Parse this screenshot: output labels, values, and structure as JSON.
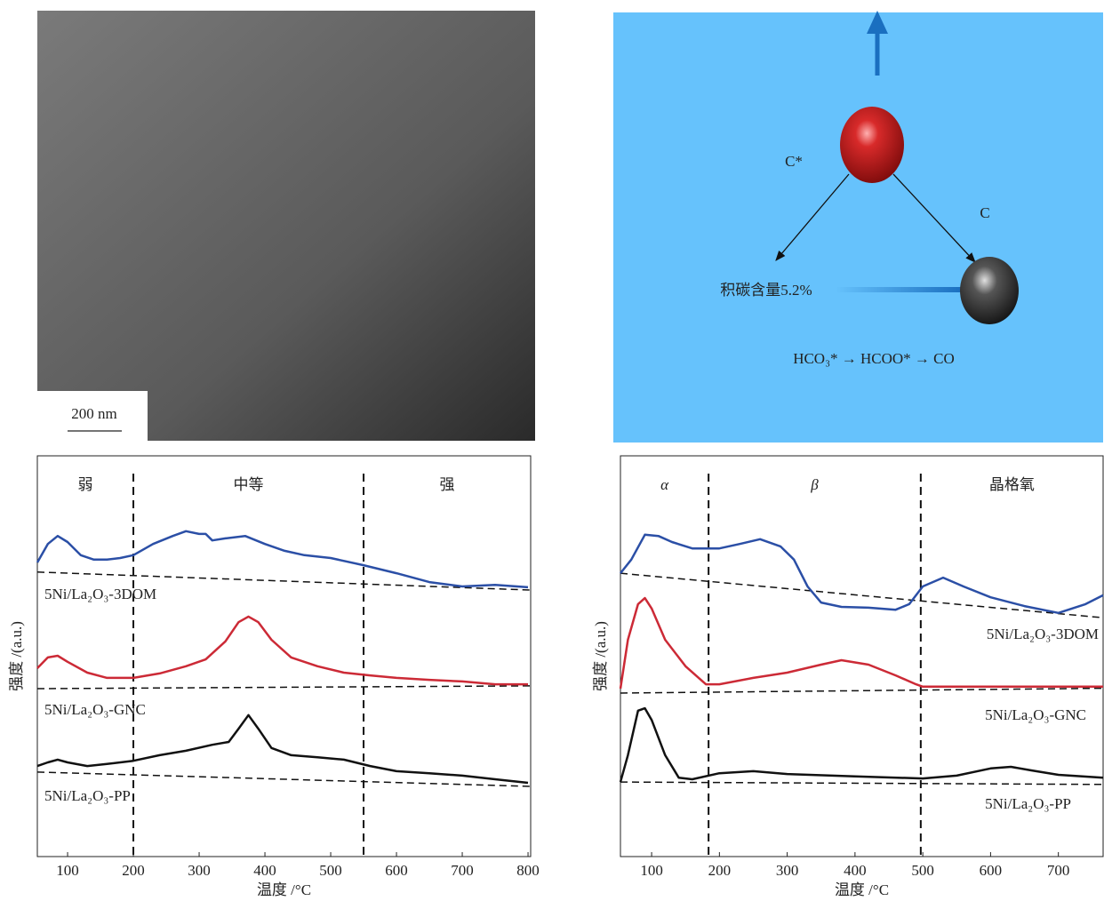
{
  "image": {
    "scale_label": "200 nm"
  },
  "diagram": {
    "left_label": "C*",
    "right_label": "C",
    "carbon_label": "积碳含量5.2%",
    "pathway": "HCO₃* → HCOO* → CO"
  },
  "chart_data": [
    {
      "type": "line",
      "xlabel": "温度 /°C",
      "ylabel": "强度 /(a.u.)",
      "xlim": [
        54,
        804
      ],
      "xticks": [
        100,
        200,
        300,
        400,
        500,
        600,
        700,
        800
      ],
      "ylim": [
        0,
        100
      ],
      "dividers": [
        200,
        550
      ],
      "region_labels": [
        "弱",
        "中等",
        "强"
      ],
      "series": [
        {
          "name": "5Ni/La₂O₃-3DOM",
          "color": "#2b4fa6",
          "x": [
            54,
            70,
            85,
            100,
            120,
            140,
            160,
            180,
            200,
            230,
            260,
            280,
            300,
            310,
            320,
            340,
            370,
            400,
            430,
            460,
            500,
            550,
            600,
            650,
            700,
            750,
            800
          ],
          "values": [
            73.4,
            78.0,
            80.0,
            78.5,
            75.2,
            74.1,
            74.1,
            74.5,
            75.2,
            78.0,
            80.0,
            81.2,
            80.5,
            80.5,
            78.9,
            79.4,
            80.0,
            78.0,
            76.3,
            75.2,
            74.5,
            72.7,
            70.7,
            68.5,
            67.4,
            67.8,
            67.2
          ],
          "baseline": [
            71.0,
            66.5
          ]
        },
        {
          "name": "5Ni/La₂O₃-GNC",
          "color": "#cc2a36",
          "x": [
            54,
            70,
            85,
            100,
            130,
            160,
            200,
            240,
            280,
            310,
            340,
            360,
            375,
            390,
            410,
            440,
            480,
            520,
            560,
            600,
            650,
            700,
            750,
            800
          ],
          "values": [
            47.0,
            49.7,
            50.1,
            48.6,
            45.9,
            44.6,
            44.6,
            45.7,
            47.5,
            49.2,
            53.7,
            58.5,
            59.9,
            58.5,
            54.1,
            49.7,
            47.5,
            45.9,
            45.2,
            44.6,
            44.1,
            43.7,
            43.0,
            43.0
          ],
          "baseline": [
            41.9,
            42.6
          ]
        },
        {
          "name": "5Ni/La₂O₃-PP",
          "color": "#111111",
          "x": [
            54,
            70,
            85,
            100,
            130,
            160,
            200,
            240,
            280,
            320,
            345,
            360,
            375,
            390,
            410,
            440,
            480,
            520,
            560,
            600,
            650,
            700,
            750,
            800
          ],
          "values": [
            22.6,
            23.5,
            24.2,
            23.5,
            22.6,
            23.1,
            23.9,
            25.3,
            26.4,
            27.9,
            28.6,
            31.9,
            35.3,
            31.9,
            27.1,
            25.3,
            24.8,
            24.2,
            22.6,
            21.3,
            20.8,
            20.2,
            19.3,
            18.4
          ],
          "baseline": [
            21.1,
            17.5
          ]
        }
      ]
    },
    {
      "type": "line",
      "xlabel": "温度 /°C",
      "ylabel": "强度 /(a.u.)",
      "xlim": [
        54,
        766
      ],
      "xticks": [
        100,
        200,
        300,
        400,
        500,
        600,
        700
      ],
      "ylim": [
        0,
        100
      ],
      "dividers": [
        184,
        497
      ],
      "region_labels": [
        "α",
        "β",
        "晶格氧"
      ],
      "series": [
        {
          "name": "5Ni/La₂O₃-3DOM",
          "color": "#2b4fa6",
          "x": [
            54,
            70,
            90,
            110,
            130,
            160,
            200,
            230,
            260,
            290,
            310,
            330,
            350,
            380,
            420,
            460,
            480,
            500,
            530,
            560,
            600,
            650,
            700,
            740,
            766
          ],
          "values": [
            70.7,
            74.1,
            80.3,
            80.0,
            78.5,
            76.9,
            76.9,
            78.0,
            79.2,
            77.4,
            74.1,
            67.4,
            63.4,
            62.3,
            62.1,
            61.6,
            63.0,
            67.4,
            69.6,
            67.4,
            64.7,
            62.5,
            60.8,
            63.0,
            65.2
          ],
          "baseline": [
            70.7,
            59.6
          ]
        },
        {
          "name": "5Ni/La₂O₃-GNC",
          "color": "#cc2a36",
          "x": [
            54,
            65,
            80,
            90,
            100,
            120,
            150,
            180,
            200,
            250,
            300,
            350,
            380,
            420,
            460,
            490,
            500,
            550,
            600,
            700,
            766
          ],
          "values": [
            41.9,
            54.1,
            63.0,
            64.5,
            61.9,
            54.1,
            47.5,
            43.0,
            43.0,
            44.6,
            45.9,
            47.9,
            49.0,
            47.9,
            45.2,
            43.0,
            42.4,
            42.4,
            42.4,
            42.4,
            42.4
          ],
          "baseline": [
            40.8,
            42.0
          ]
        },
        {
          "name": "5Ni/La₂O₃-PP",
          "color": "#111111",
          "x": [
            54,
            65,
            80,
            90,
            100,
            120,
            140,
            160,
            200,
            250,
            300,
            400,
            500,
            550,
            600,
            630,
            660,
            700,
            766
          ],
          "values": [
            18.6,
            25.3,
            36.4,
            37.0,
            34.1,
            25.3,
            19.7,
            19.3,
            20.8,
            21.3,
            20.6,
            20.0,
            19.5,
            20.2,
            22.0,
            22.4,
            21.5,
            20.4,
            19.7
          ],
          "baseline": [
            18.6,
            18.0
          ]
        }
      ]
    }
  ]
}
